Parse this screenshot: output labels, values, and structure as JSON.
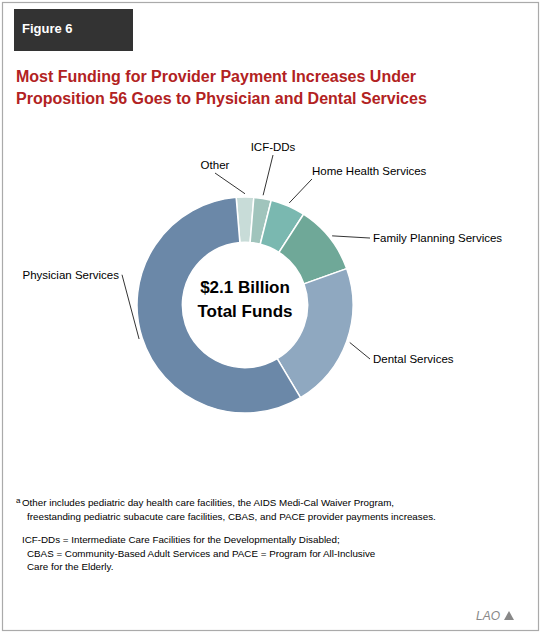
{
  "chart_data": {
    "type": "pie",
    "figure_label": "Figure 6",
    "title": "Most Funding for Provider Payment Increases Under\nProposition 56 Goes to Physician and Dental Services",
    "center_text": [
      "$2.1 Billion",
      "Total Funds"
    ],
    "categories": [
      "Other",
      "ICF-DDs",
      "Home Health Services",
      "Family Planning Services",
      "Dental Services",
      "Physician Services"
    ],
    "values": [
      2.5,
      2.5,
      5.0,
      10.0,
      21.0,
      55.0
    ],
    "colors": [
      "#c8dcd8",
      "#a0c4bc",
      "#7ab8b0",
      "#6fa898",
      "#8fa8c0",
      "#6b88a8"
    ],
    "footnotes": [
      {
        "marker": "a",
        "text": "Other includes pediatric day health care facilities, the AIDS Medi-Cal Waiver Program,\nfreestanding pediatric subacute care facilities, CBAS, and PACE provider payments increases."
      },
      {
        "text": "ICF-DDs = Intermediate Care Facilities for the Developmentally Disabled;\nCBAS = Community-Based Adult Services and PACE = Program for All-Inclusive\nCare for the Elderly."
      }
    ],
    "source": "LAO"
  }
}
